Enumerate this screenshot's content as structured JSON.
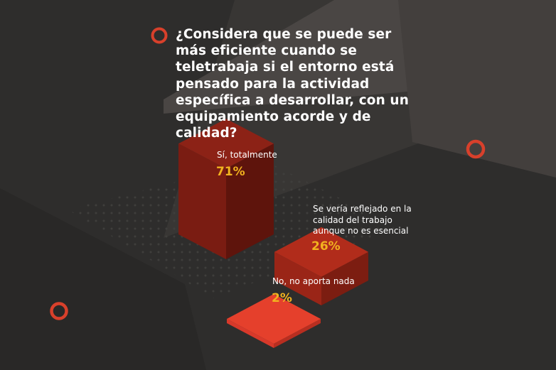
{
  "question": "¿Considera que se puede ser más eficiente cuando se teletrabaja si el entorno está pensado para la actividad específica a desarrollar, con un equipamiento acorde y de calidad?",
  "colors": {
    "background": "#2e2d2c",
    "accent_ring": "#d8402b",
    "value_text": "#f2b21f",
    "bar_dark": "#7a1c12",
    "bar_mid": "#a8281a",
    "bar_light": "#e03c2a"
  },
  "chart_data": {
    "type": "bar",
    "style": "3d-isometric",
    "unit": "%",
    "categories": [
      "Sí, totalmente",
      "Se vería reflejado en la calidad del trabajo aunque no es esencial",
      "No, no aporta nada"
    ],
    "values": [
      71,
      26,
      2
    ],
    "value_labels": [
      "71%",
      "26%",
      "2%"
    ],
    "label_lines": [
      [
        "Sí, totalmente"
      ],
      [
        "Se vería reflejado en la",
        "calidad del trabajo",
        "aunque no es esencial"
      ],
      [
        "No, no aporta nada"
      ]
    ],
    "title": "¿Considera que se puede ser más eficiente cuando se teletrabaja si el entorno está pensado para la actividad específica a desarrollar, con un equipamiento acorde y de calidad?",
    "xlabel": "",
    "ylabel": "",
    "ylim": [
      0,
      100
    ]
  }
}
